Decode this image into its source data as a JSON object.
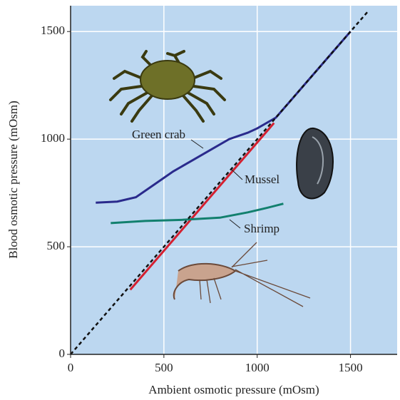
{
  "chart_data": {
    "type": "line",
    "x_label": "Ambient osmotic pressure (mOsm)",
    "y_label": "Blood osmotic pressure (mOsm)",
    "xlim": [
      0,
      1750
    ],
    "ylim": [
      0,
      1620
    ],
    "xticks": [
      0,
      500,
      1000,
      1500
    ],
    "yticks": [
      0,
      500,
      1000,
      1500
    ],
    "grid": true,
    "series": [
      {
        "name": "Green crab",
        "color": "#2a2a8c",
        "x": [
          135,
          250,
          350,
          450,
          550,
          650,
          750,
          850,
          950,
          1000,
          1100,
          1200,
          1300,
          1400,
          1500
        ],
        "values": [
          705,
          710,
          730,
          790,
          850,
          900,
          950,
          1000,
          1030,
          1050,
          1100,
          1200,
          1300,
          1400,
          1500
        ]
      },
      {
        "name": "Mussel",
        "color": "#d42030",
        "x": [
          320,
          1090
        ],
        "values": [
          300,
          1075
        ]
      },
      {
        "name": "Shrimp",
        "color": "#12806e",
        "x": [
          215,
          400,
          600,
          800,
          950,
          1050,
          1140
        ],
        "values": [
          610,
          620,
          625,
          635,
          660,
          680,
          700
        ]
      },
      {
        "color": "#111111",
        "dashed": true,
        "x": [
          0,
          1590
        ],
        "values": [
          0,
          1590
        ]
      }
    ]
  }
}
